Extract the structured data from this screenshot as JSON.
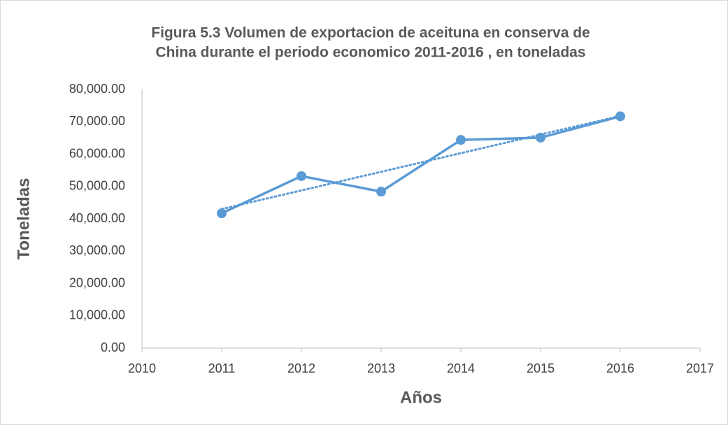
{
  "chart_data": {
    "type": "line",
    "title": [
      "Figura 5.3 Volumen de exportacion de aceituna en conserva de",
      "China durante el periodo economico 2011-2016 , en toneladas"
    ],
    "x_label": "Años",
    "y_label": "Toneladas",
    "x": [
      2011,
      2012,
      2013,
      2014,
      2015,
      2016
    ],
    "series": [
      {
        "name": "Toneladas",
        "color": "#5b9bd5",
        "values": [
          41700,
          53200,
          48400,
          64400,
          65100,
          71700
        ]
      }
    ],
    "trendline": "linear",
    "xlim": [
      2010,
      2017
    ],
    "xticks": [
      2010,
      2011,
      2012,
      2013,
      2014,
      2015,
      2016,
      2017
    ],
    "ylim": [
      0,
      80000
    ],
    "yticks": [
      {
        "value": 0,
        "label": "0.00"
      },
      {
        "value": 10000,
        "label": "10,000.00"
      },
      {
        "value": 20000,
        "label": "20,000.00"
      },
      {
        "value": 30000,
        "label": "30,000.00"
      },
      {
        "value": 40000,
        "label": "40,000.00"
      },
      {
        "value": 50000,
        "label": "50,000.00"
      },
      {
        "value": 60000,
        "label": "60,000.00"
      },
      {
        "value": 70000,
        "label": "70,000.00"
      },
      {
        "value": 80000,
        "label": "80,000.00"
      }
    ],
    "grid": false
  }
}
